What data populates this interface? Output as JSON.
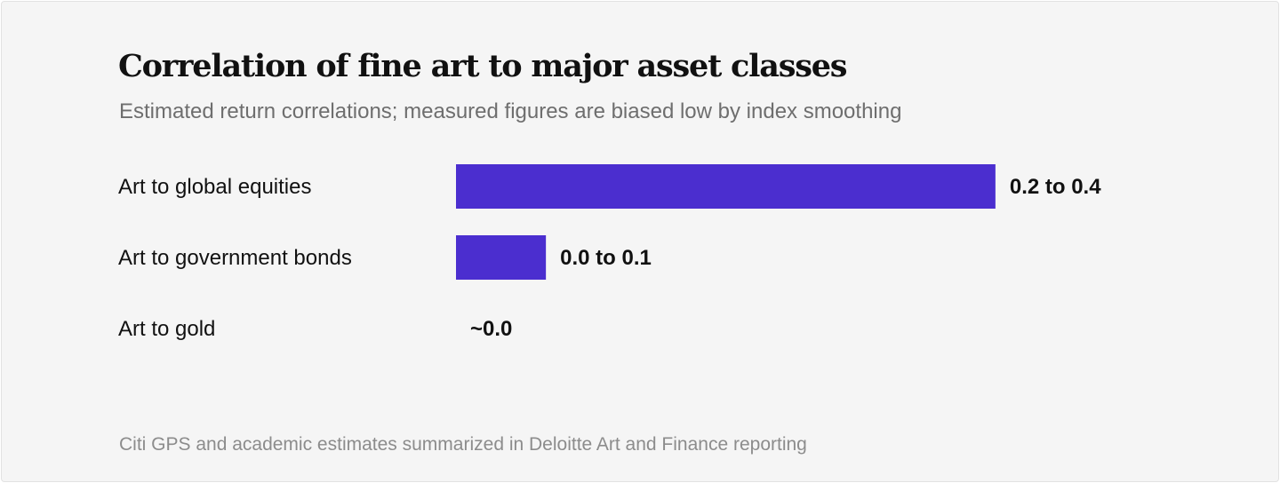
{
  "chart_data": {
    "type": "bar",
    "orientation": "horizontal",
    "title": "Correlation of fine art to major asset classes",
    "subtitle": "Estimated return correlations; measured figures are biased low by index smoothing",
    "source": "Citi GPS and academic estimates summarized in Deloitte Art and Finance reporting",
    "categories": [
      "Art to global equities",
      "Art to government bonds",
      "Art to gold"
    ],
    "values": [
      0.3,
      0.05,
      0.0
    ],
    "value_labels": [
      "0.2 to 0.4",
      "0.0 to 0.1",
      "~0.0"
    ],
    "xlim": [
      0,
      0.35
    ],
    "grid": false,
    "colors": {
      "bar": "#4b2ecf"
    }
  }
}
